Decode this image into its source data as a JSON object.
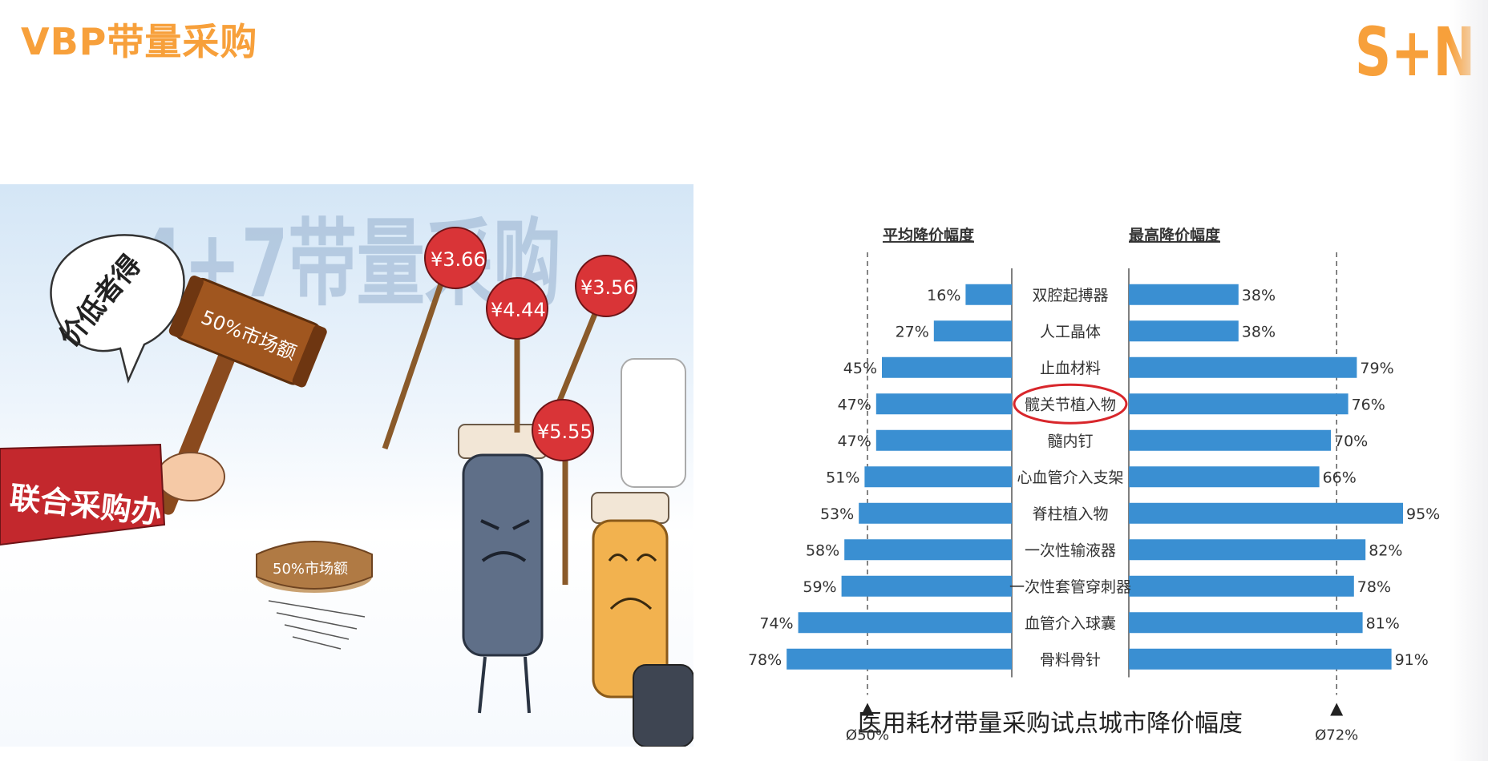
{
  "slide": {
    "title": "VBP带量采购",
    "logo_text": "S+N",
    "brand_color": "#f7a03b"
  },
  "cartoon": {
    "headline": "4+7带量采购",
    "speech_bubble": "价低者得",
    "sleeve_label": "联合采购办",
    "gavel_label": "50%市场额",
    "base_label": "50%市场额",
    "price_signs": [
      "¥3.66",
      "¥4.44",
      "¥3.56",
      "¥5.55"
    ]
  },
  "chart_data": {
    "type": "bar",
    "orientation": "horizontal-butterfly",
    "title": "医用耗材带量采购试点城市降价幅度",
    "categories": [
      "双腔起搏器",
      "人工晶体",
      "止血材料",
      "髋关节植入物",
      "髓内钉",
      "心血管介入支架",
      "脊柱植入物",
      "一次性输液器",
      "一次性套管穿刺器",
      "血管介入球囊",
      "骨料骨针"
    ],
    "highlighted_category": "髋关节植入物",
    "series": [
      {
        "name": "平均降价幅度",
        "side": "left",
        "values": [
          16,
          27,
          45,
          47,
          47,
          51,
          53,
          58,
          59,
          74,
          78
        ],
        "labels": [
          "16%",
          "27%",
          "45%",
          "47%",
          "47%",
          "51%",
          "53%",
          "58%",
          "59%",
          "74%",
          "78%"
        ]
      },
      {
        "name": "最高降价幅度",
        "side": "right",
        "values": [
          38,
          38,
          79,
          76,
          70,
          66,
          95,
          82,
          78,
          81,
          91
        ],
        "labels": [
          "38%",
          "38%",
          "79%",
          "76%",
          "70%",
          "66%",
          "95%",
          "82%",
          "78%",
          "81%",
          "91%"
        ]
      }
    ],
    "reference_lines": [
      {
        "side": "left",
        "value": 50,
        "label": "Ø50%"
      },
      {
        "side": "right",
        "value": 72,
        "label": "Ø72%"
      }
    ],
    "xlim": [
      0,
      100
    ],
    "bar_color": "#3a8fd2"
  }
}
